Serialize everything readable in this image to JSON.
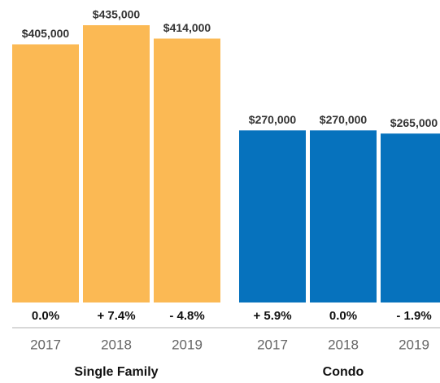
{
  "chart_data": {
    "type": "bar",
    "groups": [
      {
        "name": "Single Family",
        "color": "#fbb954",
        "categories": [
          "2017",
          "2018",
          "2019"
        ],
        "values": [
          405000,
          435000,
          414000
        ],
        "value_labels": [
          "$405,000",
          "$435,000",
          "$414,000"
        ],
        "changes": [
          "0.0%",
          "+ 7.4%",
          "- 4.8%"
        ]
      },
      {
        "name": "Condo",
        "color": "#0672bd",
        "categories": [
          "2017",
          "2018",
          "2019"
        ],
        "values": [
          270000,
          270000,
          265000
        ],
        "value_labels": [
          "$270,000",
          "$270,000",
          "$265,000"
        ],
        "changes": [
          "+ 5.9%",
          "0.0%",
          "- 1.9%"
        ]
      }
    ]
  }
}
